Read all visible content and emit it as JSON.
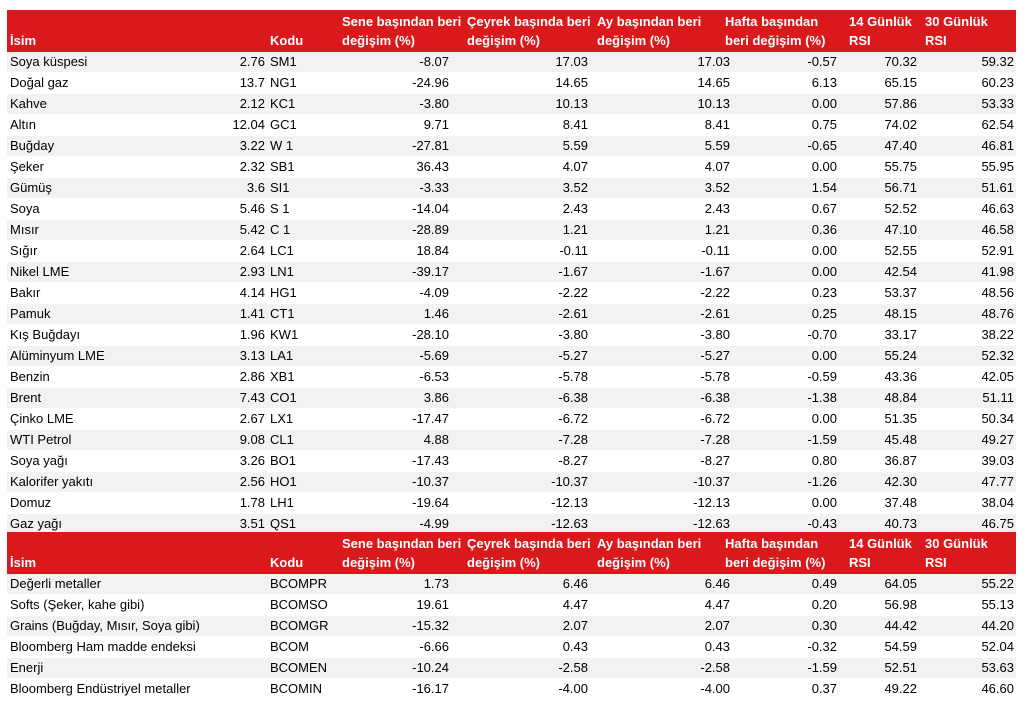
{
  "headers": {
    "name": "İsim",
    "code": "Kodu",
    "ytd": "Sene başından beri değişim (%)",
    "qtd": "Çeyrek başında beri değişim (%)",
    "mtd": "Ay başından beri değişim (%)",
    "wtd": "Hafta başından beri değişim (%)",
    "rsi14": "14 Günlük RSI",
    "rsi30": "30 Günlük RSI"
  },
  "commodities": [
    {
      "name": "Soya küspesi",
      "value": "2.76",
      "code": "SM1",
      "ytd": "-8.07",
      "qtd": "17.03",
      "mtd": "17.03",
      "wtd": "-0.57",
      "rsi14": "70.32",
      "rsi30": "59.32"
    },
    {
      "name": "Doğal gaz",
      "value": "13.7",
      "code": "NG1",
      "ytd": "-24.96",
      "qtd": "14.65",
      "mtd": "14.65",
      "wtd": "6.13",
      "rsi14": "65.15",
      "rsi30": "60.23"
    },
    {
      "name": "Kahve",
      "value": "2.12",
      "code": "KC1",
      "ytd": "-3.80",
      "qtd": "10.13",
      "mtd": "10.13",
      "wtd": "0.00",
      "rsi14": "57.86",
      "rsi30": "53.33"
    },
    {
      "name": "Altın",
      "value": "12.04",
      "code": "GC1",
      "ytd": "9.71",
      "qtd": "8.41",
      "mtd": "8.41",
      "wtd": "0.75",
      "rsi14": "74.02",
      "rsi30": "62.54"
    },
    {
      "name": "Buğday",
      "value": "3.22",
      "code": "W 1",
      "ytd": "-27.81",
      "qtd": "5.59",
      "mtd": "5.59",
      "wtd": "-0.65",
      "rsi14": "47.40",
      "rsi30": "46.81"
    },
    {
      "name": "Şeker",
      "value": "2.32",
      "code": "SB1",
      "ytd": "36.43",
      "qtd": "4.07",
      "mtd": "4.07",
      "wtd": "0.00",
      "rsi14": "55.75",
      "rsi30": "55.95"
    },
    {
      "name": "Gümüş",
      "value": "3.6",
      "code": "SI1",
      "ytd": "-3.33",
      "qtd": "3.52",
      "mtd": "3.52",
      "wtd": "1.54",
      "rsi14": "56.71",
      "rsi30": "51.61"
    },
    {
      "name": "Soya",
      "value": "5.46",
      "code": "S 1",
      "ytd": "-14.04",
      "qtd": "2.43",
      "mtd": "2.43",
      "wtd": "0.67",
      "rsi14": "52.52",
      "rsi30": "46.63"
    },
    {
      "name": "Mısır",
      "value": "5.42",
      "code": "C 1",
      "ytd": "-28.89",
      "qtd": "1.21",
      "mtd": "1.21",
      "wtd": "0.36",
      "rsi14": "47.10",
      "rsi30": "46.58"
    },
    {
      "name": "Sığır",
      "value": "2.64",
      "code": "LC1",
      "ytd": "18.84",
      "qtd": "-0.11",
      "mtd": "-0.11",
      "wtd": "0.00",
      "rsi14": "52.55",
      "rsi30": "52.91"
    },
    {
      "name": "Nikel LME",
      "value": "2.93",
      "code": "LN1",
      "ytd": "-39.17",
      "qtd": "-1.67",
      "mtd": "-1.67",
      "wtd": "0.00",
      "rsi14": "42.54",
      "rsi30": "41.98"
    },
    {
      "name": "Bakır",
      "value": "4.14",
      "code": "HG1",
      "ytd": "-4.09",
      "qtd": "-2.22",
      "mtd": "-2.22",
      "wtd": "0.23",
      "rsi14": "53.37",
      "rsi30": "48.56"
    },
    {
      "name": "Pamuk",
      "value": "1.41",
      "code": "CT1",
      "ytd": "1.46",
      "qtd": "-2.61",
      "mtd": "-2.61",
      "wtd": "0.25",
      "rsi14": "48.15",
      "rsi30": "48.76"
    },
    {
      "name": "Kış Buğdayı",
      "value": "1.96",
      "code": "KW1",
      "ytd": "-28.10",
      "qtd": "-3.80",
      "mtd": "-3.80",
      "wtd": "-0.70",
      "rsi14": "33.17",
      "rsi30": "38.22"
    },
    {
      "name": "Alüminyum LME",
      "value": "3.13",
      "code": "LA1",
      "ytd": "-5.69",
      "qtd": "-5.27",
      "mtd": "-5.27",
      "wtd": "0.00",
      "rsi14": "55.24",
      "rsi30": "52.32"
    },
    {
      "name": "Benzin",
      "value": "2.86",
      "code": "XB1",
      "ytd": "-6.53",
      "qtd": "-5.78",
      "mtd": "-5.78",
      "wtd": "-0.59",
      "rsi14": "43.36",
      "rsi30": "42.05"
    },
    {
      "name": "Brent",
      "value": "7.43",
      "code": "CO1",
      "ytd": "3.86",
      "qtd": "-6.38",
      "mtd": "-6.38",
      "wtd": "-1.38",
      "rsi14": "48.84",
      "rsi30": "51.11"
    },
    {
      "name": "Çinko LME",
      "value": "2.67",
      "code": "LX1",
      "ytd": "-17.47",
      "qtd": "-6.72",
      "mtd": "-6.72",
      "wtd": "0.00",
      "rsi14": "51.35",
      "rsi30": "50.34"
    },
    {
      "name": "WTI Petrol",
      "value": "9.08",
      "code": "CL1",
      "ytd": "4.88",
      "qtd": "-7.28",
      "mtd": "-7.28",
      "wtd": "-1.59",
      "rsi14": "45.48",
      "rsi30": "49.27"
    },
    {
      "name": "Soya yağı",
      "value": "3.26",
      "code": "BO1",
      "ytd": "-17.43",
      "qtd": "-8.27",
      "mtd": "-8.27",
      "wtd": "0.80",
      "rsi14": "36.87",
      "rsi30": "39.03"
    },
    {
      "name": "Kalorifer yakıtı",
      "value": "2.56",
      "code": "HO1",
      "ytd": "-10.37",
      "qtd": "-10.37",
      "mtd": "-10.37",
      "wtd": "-1.26",
      "rsi14": "42.30",
      "rsi30": "47.77"
    },
    {
      "name": "Domuz",
      "value": "1.78",
      "code": "LH1",
      "ytd": "-19.64",
      "qtd": "-12.13",
      "mtd": "-12.13",
      "wtd": "0.00",
      "rsi14": "37.48",
      "rsi30": "38.04"
    },
    {
      "name": "Gaz yağı",
      "value": "3.51",
      "code": "QS1",
      "ytd": "-4.99",
      "qtd": "-12.63",
      "mtd": "-12.63",
      "wtd": "-0.43",
      "rsi14": "40.73",
      "rsi30": "46.75"
    }
  ],
  "indices": [
    {
      "name": "Değerli metaller",
      "value": "",
      "code": "BCOMPR",
      "ytd": "1.73",
      "qtd": "6.46",
      "mtd": "6.46",
      "wtd": "0.49",
      "rsi14": "64.05",
      "rsi30": "55.22"
    },
    {
      "name": "Softs (Şeker, kahe gibi)",
      "value": "",
      "code": "BCOMSO",
      "ytd": "19.61",
      "qtd": "4.47",
      "mtd": "4.47",
      "wtd": "0.20",
      "rsi14": "56.98",
      "rsi30": "55.13"
    },
    {
      "name": "Grains (Buğday, Mısır, Soya gibi)",
      "value": "",
      "code": "BCOMGR",
      "ytd": "-15.32",
      "qtd": "2.07",
      "mtd": "2.07",
      "wtd": "0.30",
      "rsi14": "44.42",
      "rsi30": "44.20"
    },
    {
      "name": "Bloomberg Ham madde endeksi",
      "value": "",
      "code": "BCOM",
      "ytd": "-6.66",
      "qtd": "0.43",
      "mtd": "0.43",
      "wtd": "-0.32",
      "rsi14": "54.59",
      "rsi30": "52.04"
    },
    {
      "name": "Enerji",
      "value": "",
      "code": "BCOMEN",
      "ytd": "-10.24",
      "qtd": "-2.58",
      "mtd": "-2.58",
      "wtd": "-1.59",
      "rsi14": "52.51",
      "rsi30": "53.63"
    },
    {
      "name": "Bloomberg Endüstriyel metaller",
      "value": "",
      "code": "BCOMIN",
      "ytd": "-16.17",
      "qtd": "-4.00",
      "mtd": "-4.00",
      "wtd": "0.37",
      "rsi14": "49.22",
      "rsi30": "46.60"
    }
  ],
  "colors": {
    "header_bg": "#d9191c",
    "header_text": "#ffffff",
    "row_alt": "#f2f2f2"
  }
}
